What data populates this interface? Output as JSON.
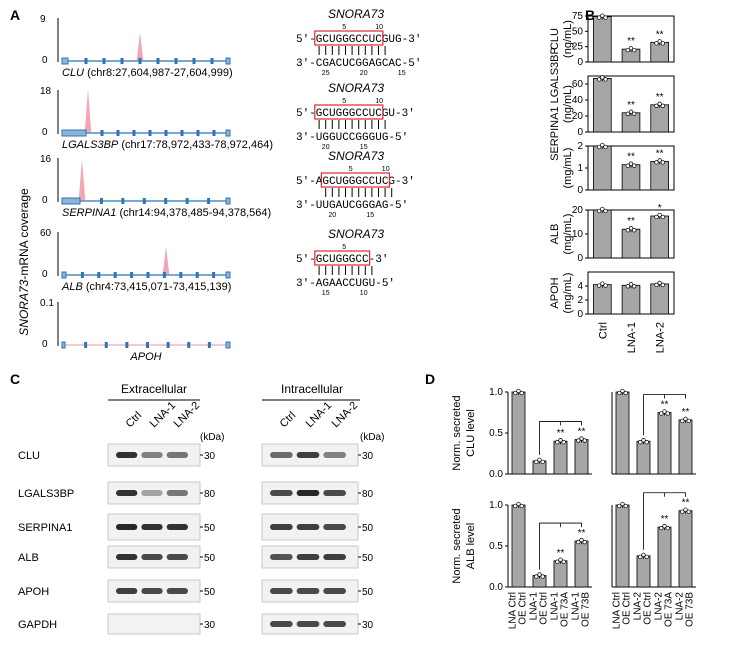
{
  "panels": {
    "A": "A",
    "B": "B",
    "C": "C",
    "D": "D"
  },
  "tracks": {
    "ylabel_gene": "SNORA73",
    "ylabel_rest": "-mRNA coverage",
    "items": [
      {
        "gene": "CLU",
        "coord": " (chr8:27,604,987-27,604,999)",
        "ymax": "9",
        "ymin": "0",
        "peak": 0.6
      },
      {
        "gene": "LGALS3BP",
        "coord": " (chr17:78,972,433-78,972,464)",
        "ymax": "18",
        "ymin": "0",
        "peak": 0.95
      },
      {
        "gene": "SERPINA1",
        "coord": " (chr14:94,378,485-94,378,564)",
        "ymax": "16",
        "ymin": "0",
        "peak": 0.9
      },
      {
        "gene": "ALB",
        "coord": " (chr4:73,415,071-73,415,139)",
        "ymax": "60",
        "ymin": "0",
        "peak": 0.6
      },
      {
        "gene": "APOH",
        "coord": "",
        "ymax": "0.1",
        "ymin": "0",
        "peak": 0.0
      }
    ]
  },
  "duplexes": [
    {
      "title": "SNORA73",
      "top_seq": "5'-GCUGGGCCUC|GUG-3'",
      "bottom_seq": "3'-CGACUCGGAGCAC-5'",
      "top_ticks": [
        "5",
        "10"
      ],
      "bottom_ticks": [
        "25",
        "20",
        "15"
      ]
    },
    {
      "title": "SNORA73",
      "top_seq": "5'-GCUGGGCCUC|GU-3'",
      "bottom_seq": "3'-UGGUCCGGGUG-5'",
      "top_ticks": [
        "5",
        "10"
      ],
      "bottom_ticks": [
        "20",
        "15"
      ]
    },
    {
      "title": "SNORA73",
      "top_seq": "5'-A|GCUGGGCCUC|G-3'",
      "bottom_seq": "3'-UUGAUCGGGAG-5'",
      "top_ticks": [
        "5",
        "10"
      ],
      "bottom_ticks": [
        "20",
        "15"
      ]
    },
    {
      "title": "SNORA73",
      "top_seq": "5'-GCUGGGCC-3'",
      "bottom_seq": "3'-AGAACCUGU-5'",
      "top_ticks": [
        "5"
      ],
      "bottom_ticks": [
        "15",
        "10"
      ]
    }
  ],
  "chart_data": [
    {
      "type": "bar",
      "panel": "B",
      "categories": [
        "Ctrl",
        "LNA-1",
        "LNA-2"
      ],
      "series": [
        {
          "name": "CLU",
          "values": [
            74,
            21,
            32
          ]
        }
      ],
      "ylabel": "CLU (ng/mL)",
      "ylim": [
        0,
        75
      ],
      "yticks": [
        "0",
        "25",
        "50",
        "75"
      ],
      "sig": [
        "",
        "**",
        "**"
      ]
    },
    {
      "type": "bar",
      "panel": "B",
      "categories": [
        "Ctrl",
        "LNA-1",
        "LNA-2"
      ],
      "series": [
        {
          "name": "SERPINA1 LGALS3BP",
          "values": [
            67,
            24,
            34
          ]
        }
      ],
      "ylabel": "SERPINA1 LGALS3BP (ng/mL)",
      "ylim": [
        0,
        70
      ],
      "yticks": [
        "0",
        "20",
        "40",
        "60"
      ],
      "sig": [
        "",
        "**",
        "**"
      ]
    },
    {
      "type": "bar",
      "panel": "B",
      "categories": [
        "Ctrl",
        "LNA-1",
        "LNA-2"
      ],
      "series": [
        {
          "name": "SERPINA1",
          "values": [
            2.0,
            1.15,
            1.3
          ]
        }
      ],
      "ylabel": "SERPINA1 (mg/mL)",
      "ylim": [
        0,
        2
      ],
      "yticks": [
        "0",
        "1",
        "2"
      ],
      "sig": [
        "",
        "**",
        "**"
      ]
    },
    {
      "type": "bar",
      "panel": "B",
      "categories": [
        "Ctrl",
        "LNA-1",
        "LNA-2"
      ],
      "series": [
        {
          "name": "ALB",
          "values": [
            21,
            12,
            17.5
          ]
        }
      ],
      "ylabel": "ALB (mg/mL)",
      "ylim": [
        0,
        20
      ],
      "yticks": [
        "0",
        "10",
        "20"
      ],
      "sig": [
        "",
        "**",
        "*"
      ]
    },
    {
      "type": "bar",
      "panel": "B",
      "categories": [
        "Ctrl",
        "LNA-1",
        "LNA-2"
      ],
      "series": [
        {
          "name": "APOH",
          "values": [
            4.2,
            4.1,
            4.3
          ]
        }
      ],
      "ylabel": "APOH (mg/mL)",
      "ylim": [
        0,
        6
      ],
      "yticks": [
        "0",
        "2",
        "4"
      ],
      "sig": [
        "",
        "",
        ""
      ]
    },
    {
      "type": "bar",
      "panel": "D",
      "categories": [
        "LNA Ctrl OE Ctrl",
        "LNA-1 OE Ctrl",
        "LNA-1 OE 73A",
        "LNA-1 OE 73B"
      ],
      "series": [
        {
          "name": "CLU",
          "values": [
            1.0,
            0.16,
            0.4,
            0.42
          ]
        }
      ],
      "ylabel": "Norm. secreted CLU level",
      "ylim": [
        0,
        1
      ],
      "yticks": [
        "0.0",
        "0.5",
        "1.0"
      ],
      "sig": [
        "",
        "",
        "**",
        "**"
      ]
    },
    {
      "type": "bar",
      "panel": "D",
      "categories": [
        "LNA Ctrl OE Ctrl",
        "LNA-2 OE Ctrl",
        "LNA-2 OE 73A",
        "LNA-2 OE 73B"
      ],
      "series": [
        {
          "name": "CLU",
          "values": [
            1.0,
            0.4,
            0.75,
            0.66
          ]
        }
      ],
      "ylabel": "",
      "ylim": [
        0,
        1
      ],
      "yticks": [],
      "sig": [
        "",
        "",
        "**",
        "**"
      ]
    },
    {
      "type": "bar",
      "panel": "D",
      "categories": [
        "LNA Ctrl OE Ctrl",
        "LNA-1 OE Ctrl",
        "LNA-1 OE 73A",
        "LNA-1 OE 73B"
      ],
      "series": [
        {
          "name": "ALB",
          "values": [
            1.0,
            0.14,
            0.32,
            0.56
          ]
        }
      ],
      "ylabel": "Norm. secreted ALB level",
      "ylim": [
        0,
        1
      ],
      "yticks": [
        "0.0",
        "0.5",
        "1.0"
      ],
      "sig": [
        "",
        "",
        "**",
        "**"
      ]
    },
    {
      "type": "bar",
      "panel": "D",
      "categories": [
        "LNA Ctrl OE Ctrl",
        "LNA-2 OE Ctrl",
        "LNA-2 OE 73A",
        "LNA-2 OE 73B"
      ],
      "series": [
        {
          "name": "ALB",
          "values": [
            1.0,
            0.38,
            0.73,
            0.93
          ]
        }
      ],
      "ylabel": "",
      "ylim": [
        0,
        1
      ],
      "yticks": [],
      "sig": [
        "",
        "",
        "**",
        "**"
      ]
    }
  ],
  "d_xlabels": {
    "left": [
      [
        "LNA Ctrl",
        "OE Ctrl"
      ],
      [
        "LNA-1",
        "OE Ctrl"
      ],
      [
        "LNA-1",
        "OE 73A"
      ],
      [
        "LNA-1",
        "OE 73B"
      ]
    ],
    "right": [
      [
        "LNA Ctrl",
        "OE Ctrl"
      ],
      [
        "LNA-2",
        "OE Ctrl"
      ],
      [
        "LNA-2",
        "OE 73A"
      ],
      [
        "LNA-2",
        "OE 73B"
      ]
    ]
  },
  "blots": {
    "extracellular": "Extracellular",
    "intracellular": "Intracellular",
    "lanes": [
      "Ctrl",
      "LNA-1",
      "LNA-2"
    ],
    "kda": "(kDa)",
    "rows": [
      {
        "name": "CLU",
        "marker": "30"
      },
      {
        "name": "LGALS3BP",
        "marker": "80"
      },
      {
        "name": "SERPINA1",
        "marker": "50"
      },
      {
        "name": "ALB",
        "marker": "50"
      },
      {
        "name": "APOH",
        "marker": "50"
      },
      {
        "name": "GAPDH",
        "marker": "30"
      }
    ]
  },
  "colors": {
    "bar": "#a6a6a6",
    "peak": "#f4a6b4",
    "track": "#2e75b6",
    "box": "#e0262e"
  }
}
